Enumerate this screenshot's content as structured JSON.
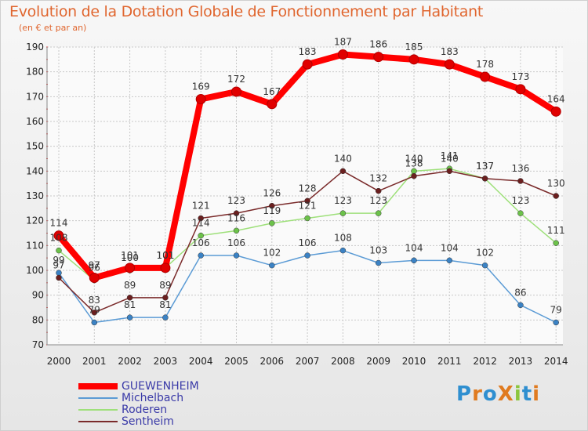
{
  "title": "Evolution de la Dotation Globale de Fonctionnement par Habitant",
  "subtitle": "(en € et par an)",
  "logo_text": "ProXiti",
  "colors": {
    "title": "#e0662f",
    "legend_text": "#3a3aa8",
    "grid": "#c8c8c8",
    "axis_text": "#222222",
    "logo_letters": [
      "#2f8fd0",
      "#e07b20",
      "#2f8fd0",
      "#e07b20",
      "#8cc63f",
      "#2f8fd0",
      "#e07b20"
    ]
  },
  "chart_data": {
    "type": "line",
    "title": "Evolution de la Dotation Globale de Fonctionnement par Habitant",
    "subtitle": "(en € et par an)",
    "x": [
      "2000",
      "2001",
      "2002",
      "2003",
      "2004",
      "2005",
      "2006",
      "2007",
      "2008",
      "2009",
      "2010",
      "2011",
      "2012",
      "2013",
      "2014"
    ],
    "ylim": [
      70,
      190
    ],
    "yticks": [
      70,
      80,
      90,
      100,
      110,
      120,
      130,
      140,
      150,
      160,
      170,
      180,
      190
    ],
    "grid": true,
    "legend_position": "bottom-left",
    "series": [
      {
        "name": "Michelbach",
        "color": "#5b9bd5",
        "marker": "#3b82c4",
        "width": 1.5,
        "values": [
          99,
          79,
          81,
          81,
          106,
          106,
          102,
          106,
          108,
          103,
          104,
          104,
          102,
          86,
          79
        ],
        "labels": [
          "99",
          "79",
          "81",
          "81",
          "106",
          "106",
          "102",
          "106",
          "108",
          "103",
          "104",
          "104",
          "102",
          "86",
          "79"
        ]
      },
      {
        "name": "Roderen",
        "color": "#9ee07a",
        "marker": "#6cc24a",
        "width": 1.5,
        "values": [
          108,
          96,
          100,
          101,
          114,
          116,
          119,
          121,
          123,
          123,
          140,
          141,
          137,
          123,
          111
        ],
        "labels": [
          "108",
          "96",
          "100",
          "101",
          "114",
          "116",
          "119",
          "121",
          "123",
          "123",
          "140",
          "141",
          "137",
          "123",
          "111"
        ]
      },
      {
        "name": "Sentheim",
        "color": "#7a2a2a",
        "marker": "#6b1f1f",
        "width": 1.5,
        "values": [
          97,
          83,
          89,
          89,
          121,
          123,
          126,
          128,
          140,
          132,
          138,
          140,
          137,
          136,
          130
        ],
        "labels": [
          "97",
          "83",
          "89",
          "89",
          "121",
          "123",
          "126",
          "128",
          "140",
          "132",
          "138",
          "140",
          "137",
          "136",
          "130"
        ]
      },
      {
        "name": "GUEWENHEIM",
        "color": "#ff0000",
        "marker": "#e00000",
        "width": 8,
        "values": [
          114,
          97,
          101,
          101,
          169,
          172,
          167,
          183,
          187,
          186,
          185,
          183,
          178,
          173,
          164
        ],
        "labels": [
          "114",
          "97",
          "101",
          "101",
          "169",
          "172",
          "167",
          "183",
          "187",
          "186",
          "185",
          "183",
          "178",
          "173",
          "164"
        ]
      }
    ],
    "legend": [
      "GUEWENHEIM",
      "Michelbach",
      "Roderen",
      "Sentheim"
    ]
  }
}
